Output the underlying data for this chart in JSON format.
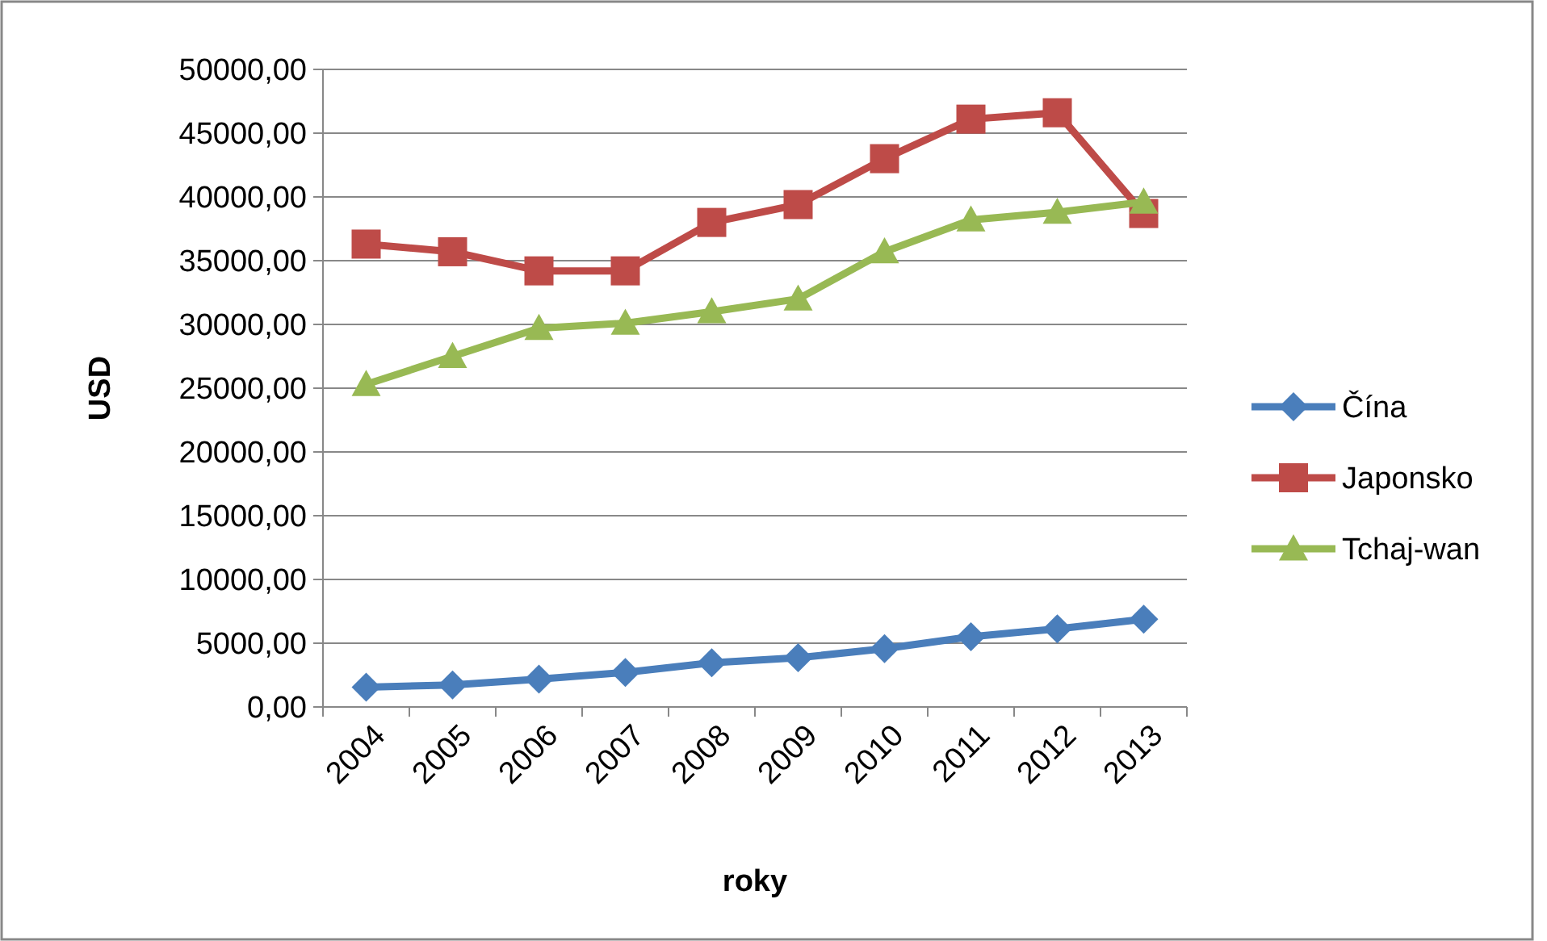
{
  "chart_data": {
    "type": "line",
    "xlabel": "roky",
    "ylabel": "USD",
    "categories": [
      "2004",
      "2005",
      "2006",
      "2007",
      "2008",
      "2009",
      "2010",
      "2011",
      "2012",
      "2013"
    ],
    "series": [
      {
        "name": "Čína",
        "color": "#4a7ebb",
        "marker": "diamond",
        "values": [
          1550,
          1730,
          2180,
          2710,
          3460,
          3860,
          4570,
          5510,
          6130,
          6880
        ]
      },
      {
        "name": "Japonsko",
        "color": "#be4b48",
        "marker": "square",
        "values": [
          36300,
          35700,
          34200,
          34200,
          38000,
          39400,
          43000,
          46100,
          46600,
          38700
        ]
      },
      {
        "name": "Tchaj-wan",
        "color": "#98b954",
        "marker": "triangle",
        "values": [
          25300,
          27500,
          29700,
          30100,
          31000,
          32000,
          35700,
          38200,
          38800,
          39600
        ]
      }
    ],
    "ylim": [
      0,
      50000
    ],
    "yticks": [
      {
        "value": 0,
        "label": "0,00"
      },
      {
        "value": 5000,
        "label": "5000,00"
      },
      {
        "value": 10000,
        "label": "10000,00"
      },
      {
        "value": 15000,
        "label": "15000,00"
      },
      {
        "value": 20000,
        "label": "20000,00"
      },
      {
        "value": 25000,
        "label": "25000,00"
      },
      {
        "value": 30000,
        "label": "30000,00"
      },
      {
        "value": 35000,
        "label": "35000,00"
      },
      {
        "value": 40000,
        "label": "40000,00"
      },
      {
        "value": 45000,
        "label": "45000,00"
      },
      {
        "value": 50000,
        "label": "50000,00"
      }
    ],
    "grid": "y",
    "legend": "right"
  }
}
